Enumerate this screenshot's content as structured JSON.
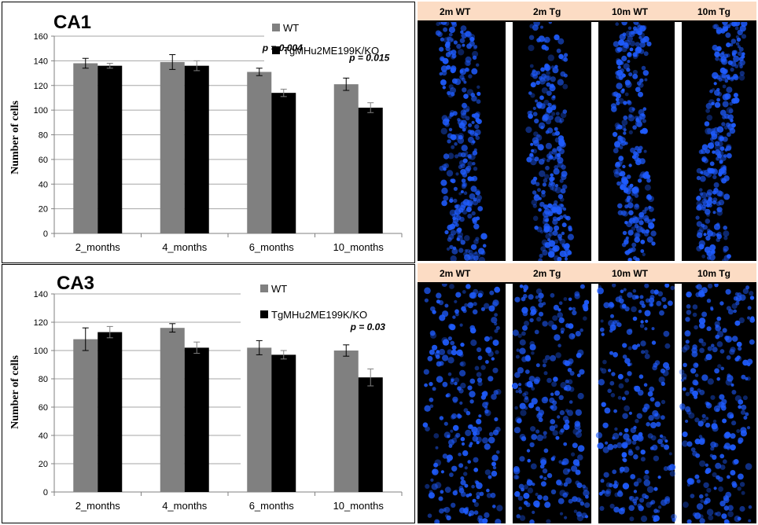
{
  "charts": {
    "ca1": {
      "title": "CA1",
      "ylabel": "Number of cells",
      "legend": {
        "wt": "WT",
        "tg": "TgMHu2ME199K/KO"
      },
      "ticks": [
        "0",
        "20",
        "40",
        "60",
        "80",
        "100",
        "120",
        "140",
        "160"
      ],
      "categories": [
        "2_months",
        "4_months",
        "6_months",
        "10_months"
      ],
      "pvalues": [
        "",
        "",
        "p = 0.004",
        "p = 0.015"
      ]
    },
    "ca3": {
      "title": "CA3",
      "ylabel": "Number of cells",
      "legend": {
        "wt": "WT",
        "tg": "TgMHu2ME199K/KO"
      },
      "ticks": [
        "0",
        "20",
        "40",
        "60",
        "80",
        "100",
        "120",
        "140"
      ],
      "categories": [
        "2_months",
        "4_months",
        "6_months",
        "10_months"
      ],
      "pvalues": [
        "",
        "",
        "",
        "p = 0.03"
      ]
    }
  },
  "chart_data": [
    {
      "type": "bar",
      "title": "CA1",
      "ylabel": "Number of cells",
      "categories": [
        "2_months",
        "4_months",
        "6_months",
        "10_months"
      ],
      "ylim": [
        0,
        160
      ],
      "grid": true,
      "legend_position": "top-right",
      "series": [
        {
          "name": "WT",
          "color": "#808080",
          "values": [
            138,
            139,
            131,
            121
          ],
          "errors": [
            4,
            6,
            3,
            5
          ]
        },
        {
          "name": "TgMHu2ME199K/KO",
          "color": "#000000",
          "values": [
            136,
            136,
            114,
            102
          ],
          "errors": [
            2,
            4,
            3,
            4
          ]
        }
      ],
      "annotations": [
        "p = 0.004",
        "p = 0.015"
      ]
    },
    {
      "type": "bar",
      "title": "CA3",
      "ylabel": "Number of cells",
      "categories": [
        "2_months",
        "4_months",
        "6_months",
        "10_months"
      ],
      "ylim": [
        0,
        140
      ],
      "grid": true,
      "legend_position": "top-right",
      "series": [
        {
          "name": "WT",
          "color": "#808080",
          "values": [
            108,
            116,
            102,
            100
          ],
          "errors": [
            8,
            3,
            5,
            4
          ]
        },
        {
          "name": "TgMHu2ME199K/KO",
          "color": "#000000",
          "values": [
            113,
            102,
            97,
            81
          ],
          "errors": [
            4,
            4,
            3,
            6
          ]
        }
      ],
      "annotations": [
        "p = 0.03"
      ]
    }
  ],
  "images": {
    "top_labels": [
      "2m WT",
      "2m Tg",
      "10m  WT",
      "10m Tg"
    ],
    "bottom_labels": [
      "2m WT",
      "2m Tg",
      "10m  WT",
      "10m Tg"
    ],
    "nuclei_color": "#1f5cff"
  }
}
